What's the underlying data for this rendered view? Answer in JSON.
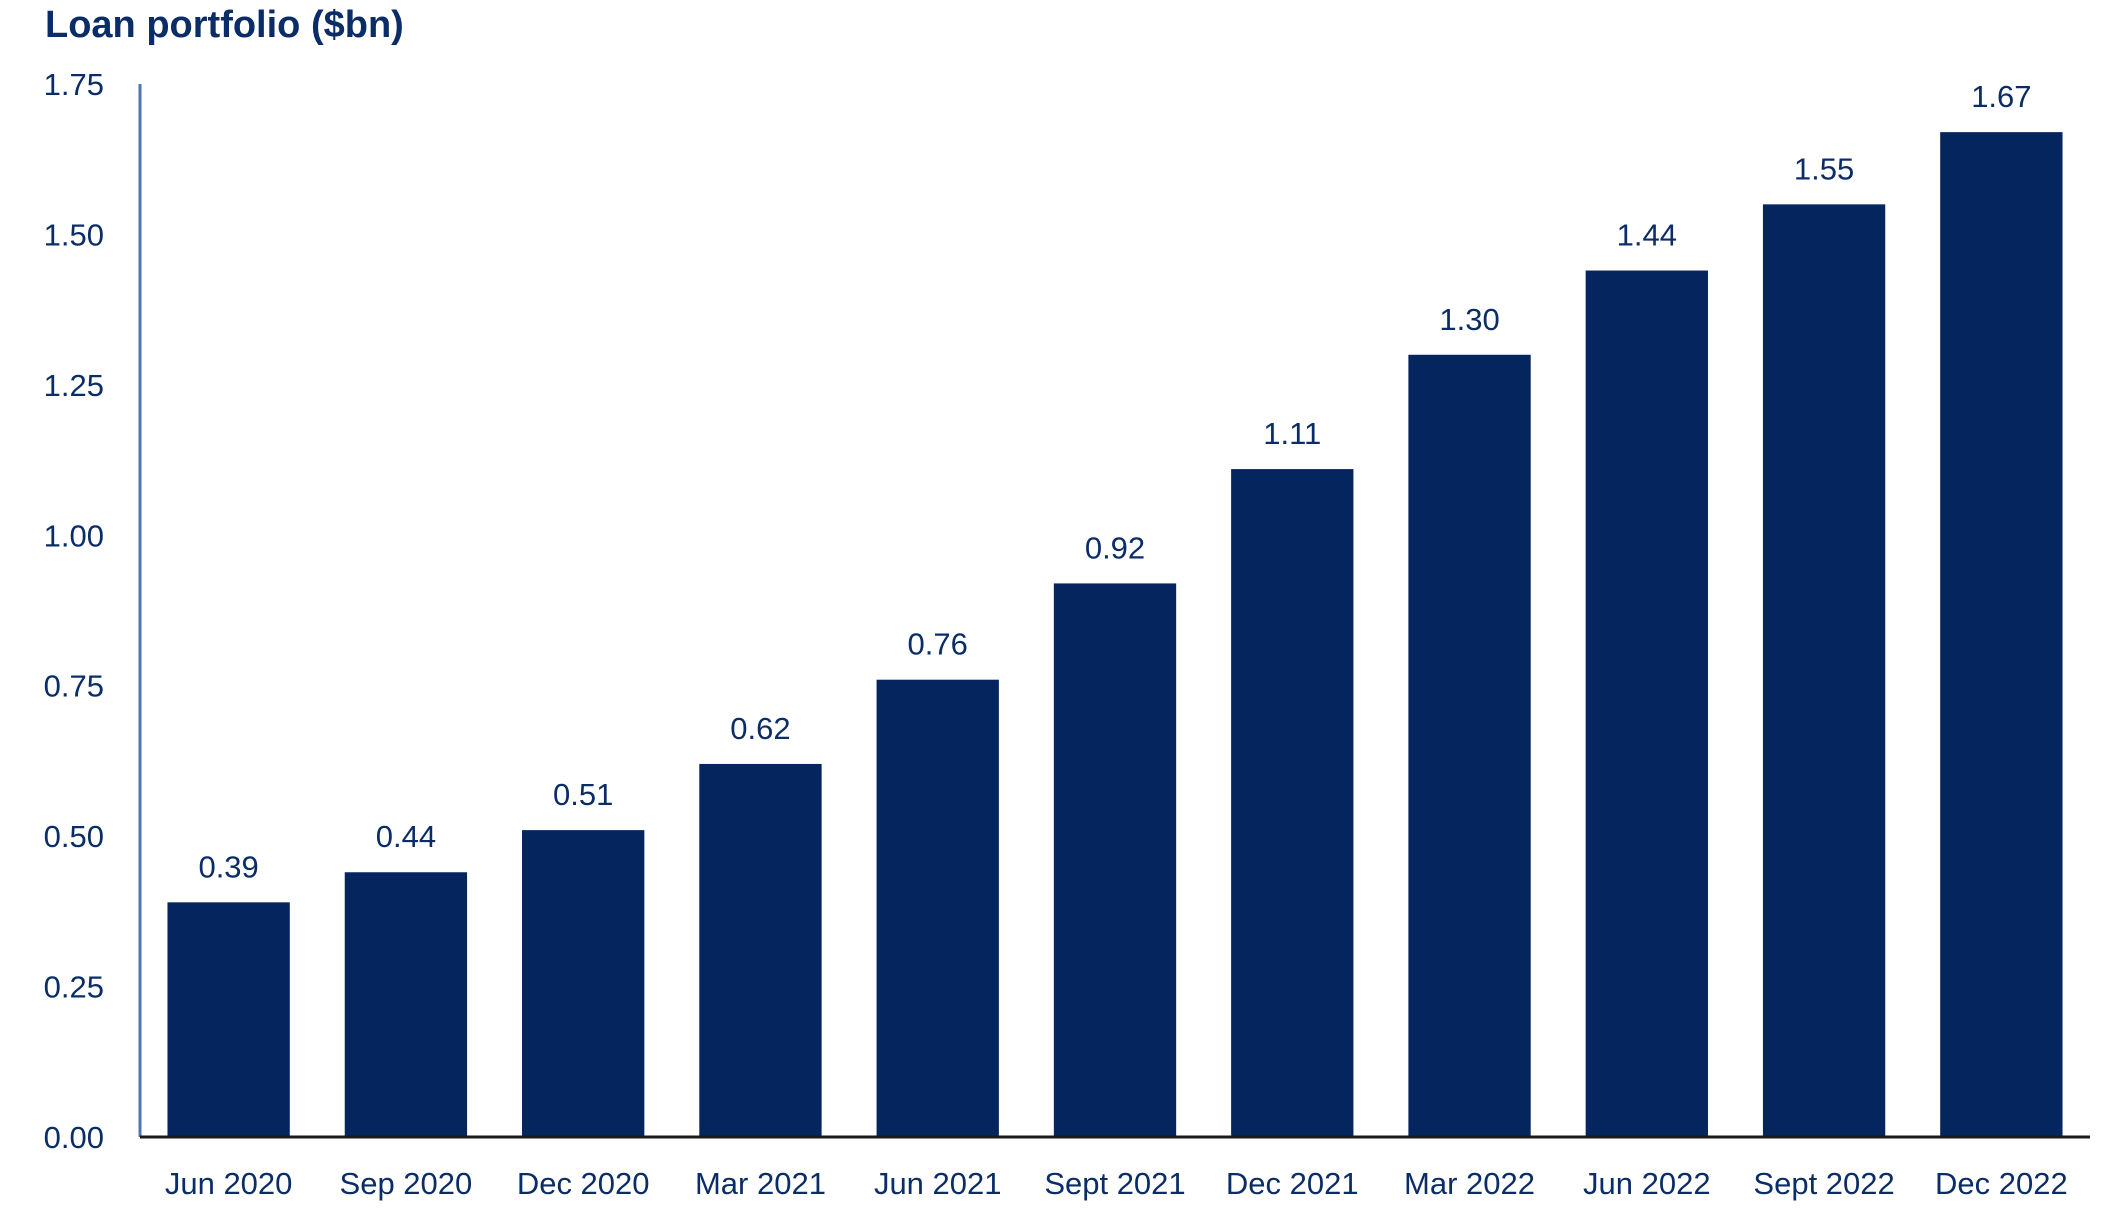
{
  "chart_data": {
    "type": "bar",
    "title": "Loan portfolio ($bn)",
    "xlabel": "",
    "ylabel": "",
    "ylim": [
      0,
      1.75
    ],
    "yticks": [
      "0.00",
      "0.25",
      "0.50",
      "0.75",
      "1.00",
      "1.25",
      "1.50",
      "1.75"
    ],
    "categories": [
      "Jun 2020",
      "Sep 2020",
      "Dec 2020",
      "Mar 2021",
      "Jun 2021",
      "Sept 2021",
      "Dec 2021",
      "Mar 2022",
      "Jun 2022",
      "Sept 2022",
      "Dec 2022"
    ],
    "values": [
      0.39,
      0.44,
      0.51,
      0.62,
      0.76,
      0.92,
      1.11,
      1.3,
      1.44,
      1.55,
      1.67
    ],
    "value_labels": [
      "0.39",
      "0.44",
      "0.51",
      "0.62",
      "0.76",
      "0.92",
      "1.11",
      "1.30",
      "1.44",
      "1.55",
      "1.67"
    ],
    "grid": false,
    "legend": "none",
    "colors": {
      "bar": "#04255e",
      "axis": "#4f74b4",
      "text": "#0b2d67"
    }
  }
}
